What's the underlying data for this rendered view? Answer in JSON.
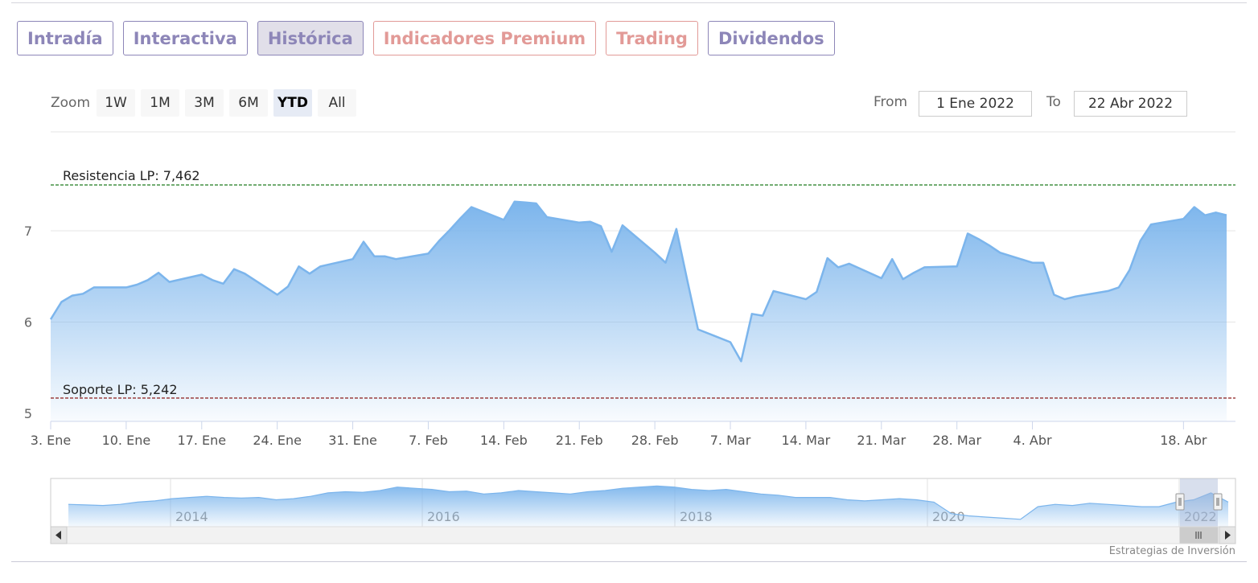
{
  "tabs": [
    {
      "label": "Intradía",
      "style": "normal"
    },
    {
      "label": "Interactiva",
      "style": "normal"
    },
    {
      "label": "Histórica",
      "style": "active"
    },
    {
      "label": "Indicadores Premium",
      "style": "premium"
    },
    {
      "label": "Trading",
      "style": "premium"
    },
    {
      "label": "Dividendos",
      "style": "normal"
    }
  ],
  "zoom": {
    "label": "Zoom",
    "buttons": [
      "1W",
      "1M",
      "3M",
      "6M",
      "YTD",
      "All"
    ],
    "active": "YTD"
  },
  "range": {
    "from_label": "From",
    "from_value": "1 Ene 2022",
    "to_label": "To",
    "to_value": "22 Abr 2022"
  },
  "colors": {
    "accent": "#8d86b8",
    "premium": "#e29a97",
    "series_line": "#7cb5ec",
    "resistance_line": "#1e7b1e",
    "support_line": "#8b1a1a"
  },
  "chart_data": {
    "type": "area",
    "title": "",
    "xlabel": "",
    "ylabel": "",
    "ylim": [
      4.9,
      7.65
    ],
    "y_ticks": [
      5,
      6,
      7
    ],
    "x_ticks": [
      "3. Ene",
      "10. Ene",
      "17. Ene",
      "24. Ene",
      "31. Ene",
      "7. Feb",
      "14. Feb",
      "21. Feb",
      "28. Feb",
      "7. Mar",
      "14. Mar",
      "21. Mar",
      "28. Mar",
      "4. Abr",
      "18. Abr"
    ],
    "x_tick_days": [
      3,
      10,
      17,
      24,
      31,
      38,
      45,
      52,
      59,
      66,
      73,
      80,
      87,
      94,
      108
    ],
    "x_range_days": [
      3,
      112
    ],
    "series": [
      {
        "days": [
          3,
          4,
          5,
          6,
          7,
          10,
          11,
          12,
          13,
          14,
          17,
          18,
          19,
          20,
          21,
          24,
          25,
          26,
          27,
          28,
          31,
          32,
          33,
          34,
          35,
          38,
          39,
          40,
          41,
          42,
          45,
          46,
          47,
          48,
          49,
          52,
          53,
          54,
          55,
          56,
          59,
          60,
          61,
          62,
          63,
          66,
          67,
          68,
          69,
          70,
          73,
          74,
          75,
          76,
          77,
          80,
          81,
          82,
          83,
          84,
          87,
          88,
          89,
          90,
          91,
          94,
          95,
          96,
          97,
          98,
          101,
          102,
          103,
          104,
          105,
          108,
          109,
          110,
          111,
          112
        ],
        "values": [
          6.03,
          6.22,
          6.29,
          6.31,
          6.38,
          6.38,
          6.41,
          6.46,
          6.54,
          6.44,
          6.52,
          6.46,
          6.42,
          6.58,
          6.53,
          6.3,
          6.39,
          6.61,
          6.53,
          6.61,
          6.69,
          6.88,
          6.72,
          6.72,
          6.69,
          6.75,
          6.89,
          7.01,
          7.14,
          7.26,
          7.12,
          7.32,
          7.31,
          7.3,
          7.15,
          7.09,
          7.1,
          7.05,
          6.77,
          7.06,
          6.76,
          6.65,
          7.02,
          6.46,
          5.92,
          5.78,
          5.57,
          6.09,
          6.07,
          6.34,
          6.25,
          6.33,
          6.7,
          6.6,
          6.64,
          6.48,
          6.69,
          6.47,
          6.54,
          6.6,
          6.61,
          6.97,
          6.91,
          6.84,
          6.76,
          6.65,
          6.65,
          6.3,
          6.25,
          6.28,
          6.34,
          6.38,
          6.57,
          6.89,
          7.07,
          7.13,
          7.26,
          7.17,
          7.2,
          7.17
        ]
      }
    ],
    "annotations": [
      {
        "label": "Resistencia LP: 7,462",
        "value": 7.462
      },
      {
        "label": "Soporte LP: 5,242",
        "value": 5.242
      }
    ],
    "grid": true,
    "navigator": {
      "labels": [
        "2014",
        "2016",
        "2018",
        "2020",
        "2022"
      ],
      "values": [
        5.4,
        5.35,
        5.3,
        5.4,
        5.6,
        5.7,
        5.9,
        6.0,
        6.1,
        6.0,
        5.95,
        6.0,
        5.8,
        5.9,
        6.1,
        6.4,
        6.5,
        6.45,
        6.6,
        6.9,
        6.8,
        6.7,
        6.5,
        6.55,
        6.3,
        6.4,
        6.6,
        6.5,
        6.4,
        6.3,
        6.5,
        6.6,
        6.8,
        6.9,
        7.0,
        6.9,
        6.7,
        6.6,
        6.7,
        6.5,
        6.3,
        6.2,
        6.0,
        6.0,
        6.0,
        5.8,
        5.7,
        5.8,
        5.9,
        5.8,
        5.6,
        4.6,
        4.4,
        4.3,
        4.2,
        4.1,
        5.2,
        5.4,
        5.3,
        5.5,
        5.4,
        5.3,
        5.2,
        5.2,
        5.6,
        5.8,
        6.4,
        5.6
      ]
    }
  },
  "credit": "Estrategias de Inversión"
}
